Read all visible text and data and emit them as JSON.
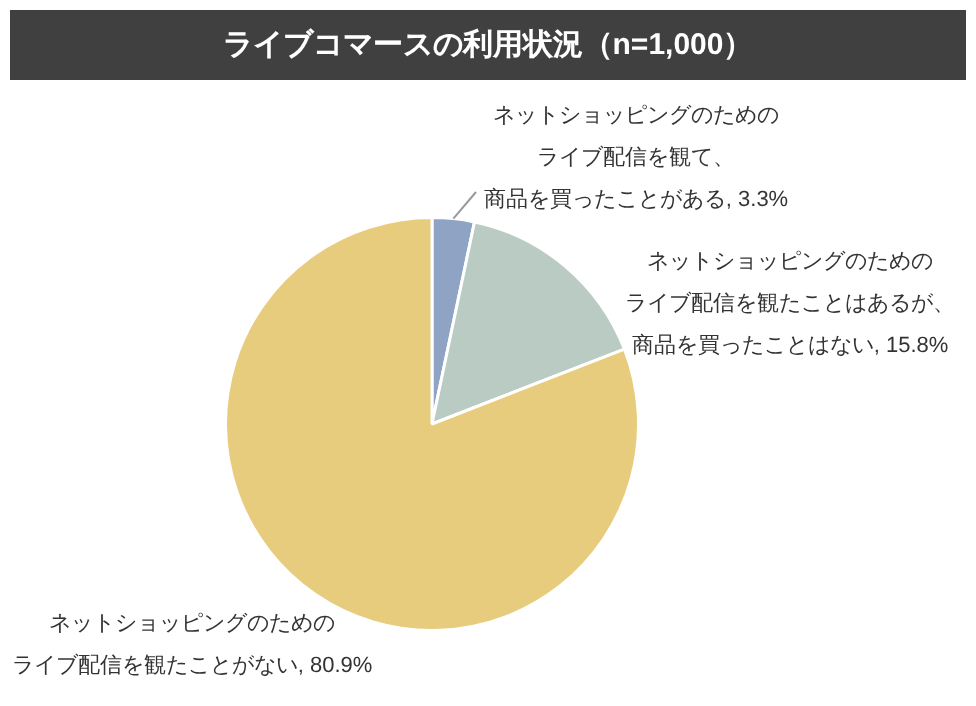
{
  "chart_data": {
    "type": "pie",
    "title": "ライブコマースの利用状況（n=1,000）",
    "categories": [
      "ネットショッピングのためのライブ配信を観て、商品を買ったことがある",
      "ネットショッピングのためのライブ配信を観たことはあるが、商品を買ったことはない",
      "ネットショッピングのためのライブ配信を観たことがない"
    ],
    "values": [
      3.3,
      15.8,
      80.9
    ],
    "colors": [
      "#8fa3c4",
      "#b9cbc3",
      "#e8cc7e"
    ],
    "value_labels": [
      "3.3%",
      "15.8%",
      "80.9%"
    ],
    "legend": false
  }
}
